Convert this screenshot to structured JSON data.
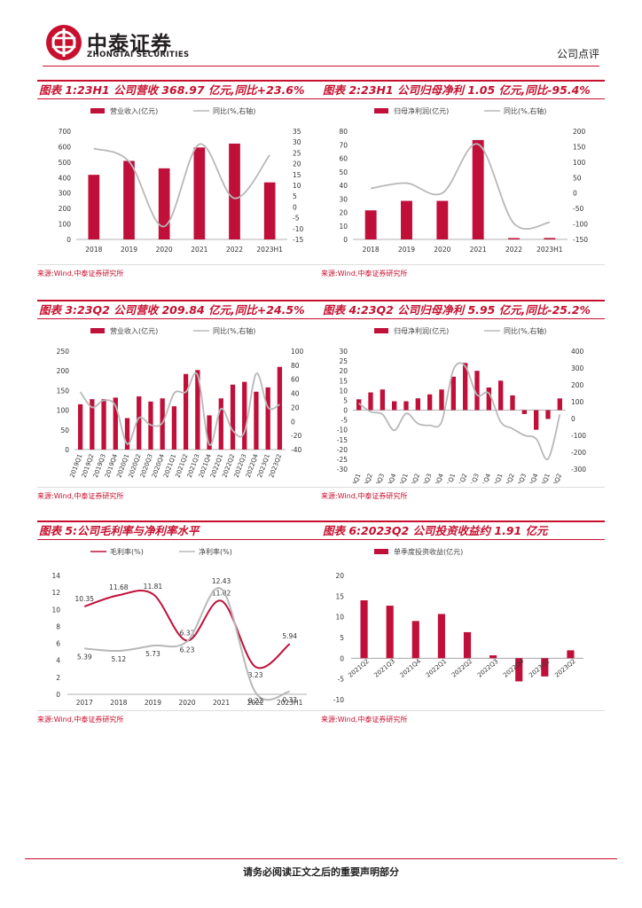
{
  "header": {
    "logo_cn": "中泰证券",
    "logo_en": "ZHONGTAI SECURITIES",
    "doc_type": "公司点评"
  },
  "footer": {
    "text": "请务必阅读正文之后的重要声明部分"
  },
  "colors": {
    "accent": "#c8102e",
    "bar": "#c0103a",
    "line_gray": "#b8b8b8"
  },
  "chart_data": [
    {
      "id": "c1",
      "type": "bar+line",
      "title": "图表 1:23H1 公司营收 368.97 亿元,同比+23.6%",
      "source": "来源:Wind,中泰证券研究所",
      "categories": [
        "2018",
        "2019",
        "2020",
        "2021",
        "2022",
        "2023H1"
      ],
      "series": [
        {
          "name": "营业收入(亿元)",
          "axis": "left",
          "kind": "bar",
          "values": [
            418,
            508,
            460,
            595,
            620,
            369
          ]
        },
        {
          "name": "同比(%,右轴)",
          "axis": "right",
          "kind": "line",
          "values": [
            27,
            21,
            -9,
            29,
            4,
            24
          ]
        }
      ],
      "ylim": [
        0,
        700
      ],
      "yticks": [
        0,
        100,
        200,
        300,
        400,
        500,
        600,
        700
      ],
      "y2lim": [
        -15,
        35
      ],
      "y2ticks": [
        -15,
        -10,
        -5,
        0,
        5,
        10,
        15,
        20,
        25,
        30,
        35
      ]
    },
    {
      "id": "c2",
      "type": "bar+line",
      "title": "图表 2:23H1 公司归母净利 1.05 亿元,同比-95.4%",
      "source": "来源:Wind,中泰证券研究所",
      "categories": [
        "2018",
        "2019",
        "2020",
        "2021",
        "2022",
        "2023H1"
      ],
      "series": [
        {
          "name": "归母净利润(亿元)",
          "axis": "left",
          "kind": "bar",
          "values": [
            21.5,
            28.5,
            28.5,
            73.5,
            1.0,
            1.05
          ]
        },
        {
          "name": "同比(%,右轴)",
          "axis": "right",
          "kind": "line",
          "values": [
            15,
            32,
            0,
            158,
            -98,
            -95
          ]
        }
      ],
      "ylim": [
        0,
        80
      ],
      "yticks": [
        0,
        10,
        20,
        30,
        40,
        50,
        60,
        70,
        80
      ],
      "y2lim": [
        -150,
        200
      ],
      "y2ticks": [
        -150,
        -100,
        -50,
        0,
        50,
        100,
        150,
        200
      ]
    },
    {
      "id": "c3",
      "type": "bar+line",
      "title": "图表 3:23Q2 公司营收 209.84 亿元,同比+24.5%",
      "source": "来源:Wind,中泰证券研究所",
      "categories": [
        "2019Q1",
        "2019Q2",
        "2019Q3",
        "2019Q4",
        "2020Q1",
        "2020Q2",
        "2020Q3",
        "2020Q4",
        "2021Q1",
        "2021Q2",
        "2021Q3",
        "2021Q4",
        "2022Q1",
        "2022Q2",
        "2022Q3",
        "2022Q4",
        "2023Q1",
        "2023Q2"
      ],
      "series": [
        {
          "name": "营业收入(亿元)",
          "axis": "left",
          "kind": "bar",
          "values": [
            115,
            128,
            128,
            132,
            80,
            135,
            122,
            130,
            110,
            192,
            202,
            87,
            130,
            165,
            172,
            147,
            158,
            210
          ]
        },
        {
          "name": "同比(%,右轴)",
          "axis": "right",
          "kind": "line",
          "values": [
            42,
            20,
            30,
            22,
            -32,
            5,
            -5,
            -2,
            40,
            42,
            66,
            -33,
            18,
            -13,
            -15,
            68,
            20,
            24
          ]
        }
      ],
      "ylim": [
        0,
        250
      ],
      "yticks": [
        0,
        50,
        100,
        150,
        200,
        250
      ],
      "y2lim": [
        -40,
        100
      ],
      "y2ticks": [
        -40,
        -20,
        0,
        20,
        40,
        60,
        80,
        100
      ]
    },
    {
      "id": "c4",
      "type": "bar+line",
      "title": "图表 4:23Q2 公司归母净利 5.95 亿元,同比-25.2%",
      "source": "来源:Wind,中泰证券研究所",
      "categories": [
        "2019Q1",
        "2019Q2",
        "2019Q3",
        "2019Q4",
        "2020Q1",
        "2020Q2",
        "2020Q3",
        "2020Q4",
        "2021Q1",
        "2021Q2",
        "2021Q3",
        "2021Q4",
        "2022Q1",
        "2022Q2",
        "2022Q3",
        "2022Q4",
        "2023Q1",
        "2023Q2"
      ],
      "series": [
        {
          "name": "归母净利润(亿元)",
          "axis": "left",
          "kind": "bar",
          "values": [
            5.5,
            9,
            10.5,
            4.5,
            4.5,
            6,
            8,
            10.5,
            17,
            24,
            20,
            11.5,
            15,
            7.5,
            -2,
            -10,
            -4.5,
            5.95
          ]
        },
        {
          "name": "同比(%,右轴)",
          "axis": "right",
          "kind": "line",
          "values": [
            90,
            40,
            25,
            -70,
            30,
            -30,
            -40,
            -20,
            290,
            310,
            140,
            150,
            -20,
            -60,
            -100,
            -120,
            -240,
            25
          ]
        }
      ],
      "ylim": [
        -30,
        30
      ],
      "yticks": [
        -30,
        -25,
        -20,
        -15,
        -10,
        -5,
        0,
        5,
        10,
        15,
        20,
        25,
        30
      ],
      "y2lim": [
        -300,
        400
      ],
      "y2ticks": [
        -300,
        -200,
        -100,
        0,
        100,
        200,
        300,
        400
      ]
    },
    {
      "id": "c5",
      "type": "line",
      "title": "图表 5:公司毛利率与净利率水平",
      "source": "来源:Wind,中泰证券研究所",
      "categories": [
        "2017",
        "2018",
        "2019",
        "2020",
        "2021",
        "2022",
        "2023H1"
      ],
      "series": [
        {
          "name": "毛利率(%)",
          "values": [
            10.35,
            11.68,
            11.81,
            6.32,
            11.02,
            3.23,
            5.94
          ],
          "color": "#c0103a"
        },
        {
          "name": "净利率(%)",
          "values": [
            5.39,
            5.12,
            5.73,
            6.23,
            12.43,
            0.22,
            0.33
          ],
          "color": "#b8b8b8"
        }
      ],
      "ylim": [
        0,
        14
      ],
      "yticks": [
        0,
        2,
        4,
        6,
        8,
        10,
        12,
        14
      ]
    },
    {
      "id": "c6",
      "type": "bar",
      "title": "图表 6:2023Q2 公司投资收益约 1.91 亿元",
      "source": "来源:Wind,中泰证券研究所",
      "categories": [
        "2021Q2",
        "2021Q3",
        "2021Q4",
        "2022Q1",
        "2022Q2",
        "2022Q3",
        "2022Q4",
        "2023Q1",
        "2023Q2"
      ],
      "series": [
        {
          "name": "单季度投资收益(亿元)",
          "kind": "bar",
          "values": [
            14,
            12.7,
            9,
            10.7,
            6.3,
            0.7,
            -5.6,
            -4.4,
            1.91
          ]
        }
      ],
      "ylim": [
        -10,
        20
      ],
      "yticks": [
        -10,
        -5,
        0,
        5,
        10,
        15,
        20
      ]
    }
  ]
}
